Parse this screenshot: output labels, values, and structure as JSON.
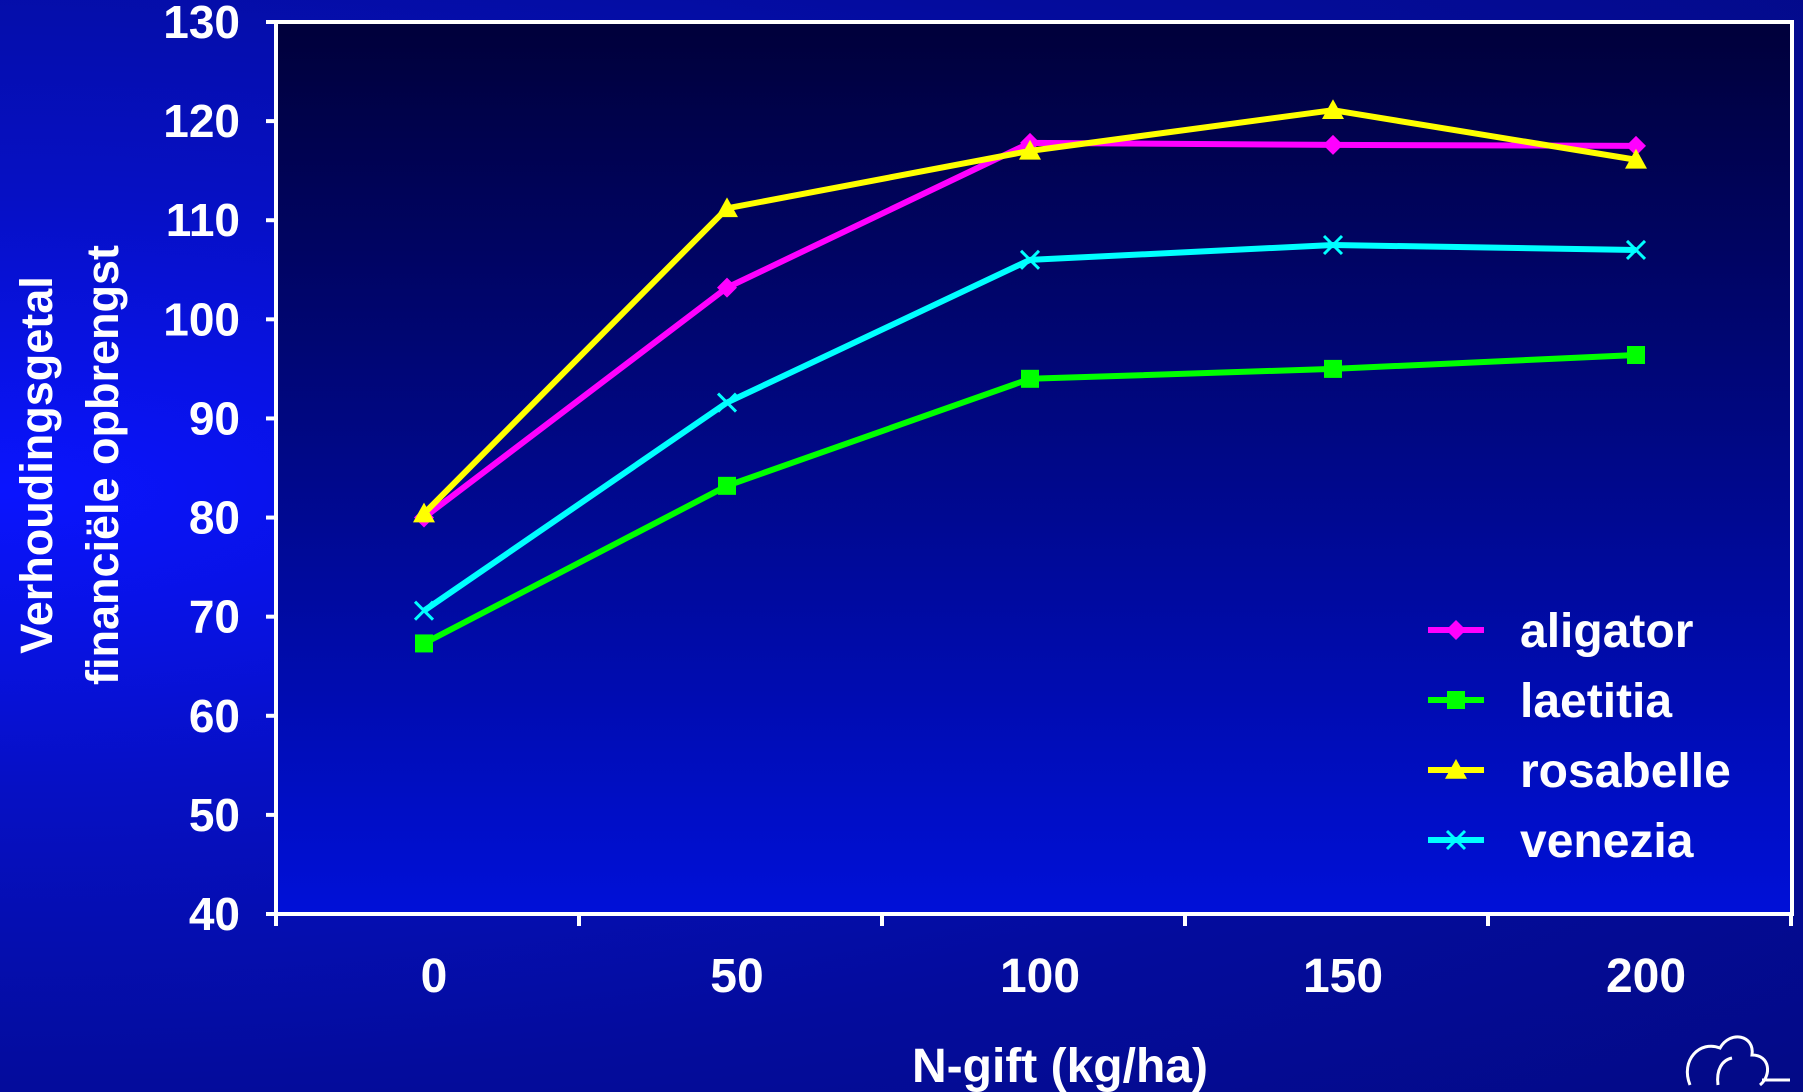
{
  "colors": {
    "axis": "#ffffff",
    "plot_bg_top": "#00003a",
    "plot_bg_bottom": "#0010d8",
    "page_bg": "#0610c4"
  },
  "chart_data": {
    "type": "line",
    "title": "",
    "xlabel": "N-gift (kg/ha)",
    "ylabel_lines": [
      "Verhoudingsgetal",
      "financiële opbrengst"
    ],
    "x": [
      0,
      50,
      100,
      150,
      200
    ],
    "x_tick_labels": [
      "0",
      "50",
      "100",
      "150",
      "200"
    ],
    "ylim": [
      40,
      130
    ],
    "y_ticks": [
      40,
      50,
      60,
      70,
      80,
      90,
      100,
      110,
      120,
      130
    ],
    "grid": false,
    "legend_position": "bottom-right",
    "series": [
      {
        "name": "aligator",
        "color": "#ff00ff",
        "marker": "diamond",
        "values": [
          80.0,
          103.2,
          117.8,
          117.6,
          117.5
        ]
      },
      {
        "name": "laetitia",
        "color": "#00ff00",
        "marker": "square",
        "values": [
          67.3,
          83.2,
          94.0,
          95.0,
          96.4
        ]
      },
      {
        "name": "rosabelle",
        "color": "#ffff00",
        "marker": "triangle",
        "values": [
          80.4,
          111.2,
          117.0,
          121.1,
          116.1
        ]
      },
      {
        "name": "venezia",
        "color": "#00ffff",
        "marker": "x",
        "values": [
          70.6,
          91.6,
          106.0,
          107.5,
          107.0
        ]
      }
    ]
  }
}
